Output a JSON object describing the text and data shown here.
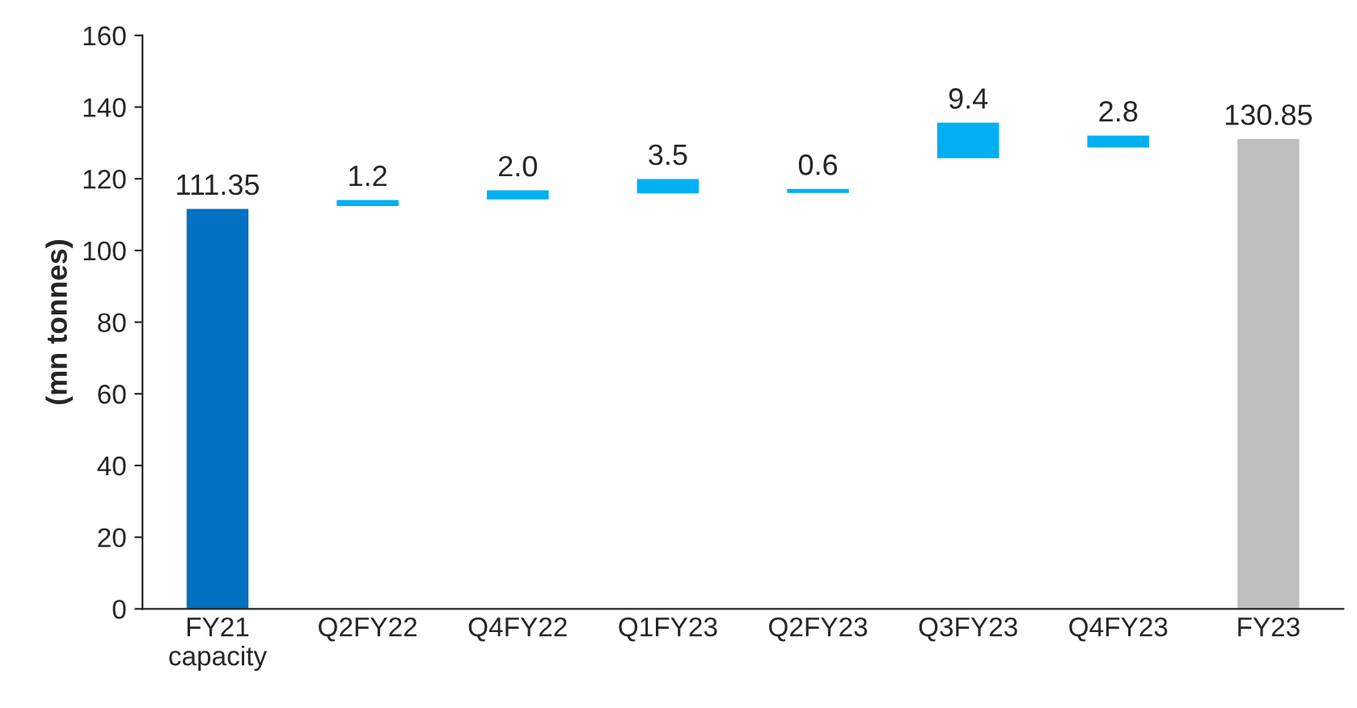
{
  "chart_data": {
    "type": "bar",
    "ylabel": "(mn tonnes)",
    "categories": [
      "FY21\ncapacity",
      "Q2FY22",
      "Q4FY22",
      "Q1FY23",
      "Q2FY23",
      "Q3FY23",
      "Q4FY23",
      "FY23"
    ],
    "values": [
      111.35,
      1.2,
      2.0,
      3.5,
      0.6,
      9.4,
      2.8,
      130.85
    ],
    "base": [
      0,
      112.6,
      114.5,
      116.2,
      116.3,
      126.0,
      129.0,
      0
    ],
    "colors": [
      "#0070c0",
      "#00b0f0",
      "#00b0f0",
      "#00b0f0",
      "#00b0f0",
      "#00b0f0",
      "#00b0f0",
      "#bfbfbf"
    ],
    "value_labels": [
      "111.35",
      "1.2",
      "2.0",
      "3.5",
      "0.6",
      "9.4",
      "2.8",
      "130.85"
    ],
    "ylim": [
      0,
      160
    ],
    "yticks": [
      0,
      20,
      40,
      60,
      80,
      100,
      120,
      140,
      160
    ],
    "grid": false
  }
}
